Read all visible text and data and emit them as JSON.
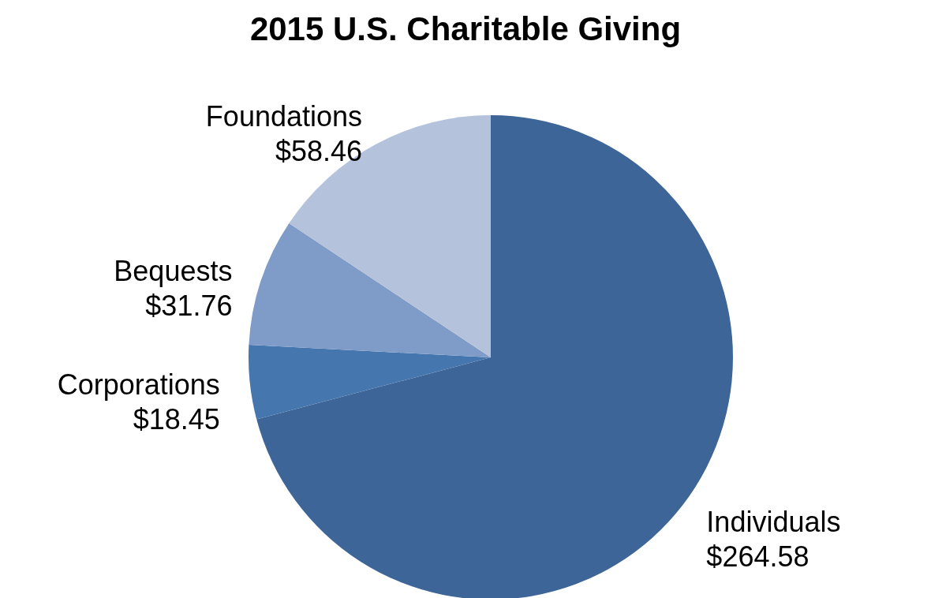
{
  "chart_data": {
    "type": "pie",
    "title": "2015 U.S. Charitable Giving",
    "categories": [
      "Individuals",
      "Corporations",
      "Bequests",
      "Foundations"
    ],
    "values": [
      264.58,
      18.45,
      31.76,
      58.46
    ],
    "value_labels": [
      "$264.58",
      "$18.45",
      "$31.76",
      "$58.46"
    ],
    "colors": [
      "#3d6597",
      "#4676ae",
      "#7f9bc8",
      "#b4c2dc"
    ],
    "legend": false
  }
}
